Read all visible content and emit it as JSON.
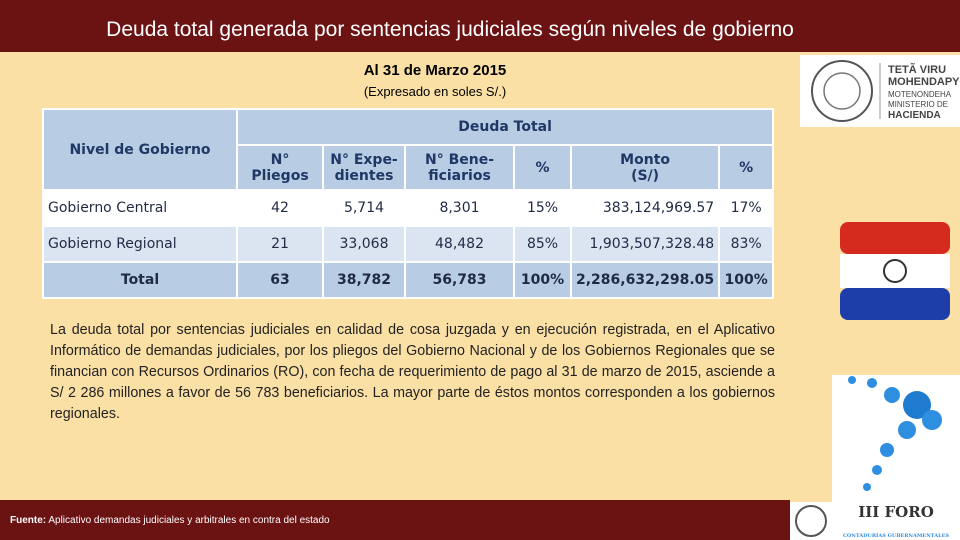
{
  "header": {
    "title": "Deuda total generada por sentencias judiciales según niveles de gobierno",
    "date": "Al 31 de Marzo 2015",
    "unit": "(Expresado en soles S/.)"
  },
  "table": {
    "corner": "Nivel de Gobierno",
    "group": "Deuda Total",
    "columns": [
      "N°\nPliegos",
      "N° Expe-\ndientes",
      "N° Bene-\nficiarios",
      "%",
      "Monto\n(S/)",
      "%"
    ],
    "rows": [
      [
        "Gobierno Central",
        "42",
        "5,714",
        "8,301",
        "15%",
        "383,124,969.57",
        "17%"
      ],
      [
        "Gobierno Regional",
        "21",
        "33,068",
        "48,482",
        "85%",
        "1,903,507,328.48",
        "83%"
      ],
      [
        "Total",
        "63",
        "38,782",
        "56,783",
        "100%",
        "2,286,632,298.05",
        "100%"
      ]
    ]
  },
  "body": "La deuda total por sentencias judiciales en calidad de cosa juzgada y en ejecución registrada, en el Aplicativo Informático de demandas judiciales, por los pliegos del Gobierno Nacional y de los Gobiernos Regionales que se financian con Recursos Ordinarios (RO), con fecha de requerimiento de pago al 31 de marzo de 2015, asciende a S/ 2 286 millones a favor de 56 783 beneficiarios. La mayor parte de éstos montos corresponden a los gobiernos regionales.",
  "source": {
    "label": "Fuente:",
    "text": "Aplicativo demandas judiciales y arbitrales en contra del estado"
  },
  "logos": {
    "ministry": [
      "TETÃ VIRU",
      "MOHENDAPY",
      "MOTENONDEHA",
      "MINISTERIO DE",
      "HACIENDA"
    ],
    "forum": [
      "III FORO",
      "CONTADURÍAS GUBERNAMENTALES"
    ]
  }
}
